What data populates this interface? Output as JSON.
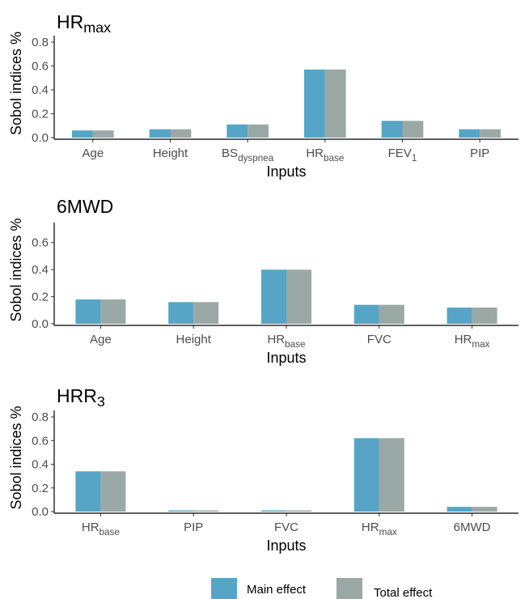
{
  "chart_data": [
    {
      "type": "bar",
      "title": "HR",
      "title_sub": "max",
      "xlabel": "Inputs",
      "ylabel": "Sobol indices %",
      "ylim": [
        0,
        0.8
      ],
      "yticks": [
        "0.0",
        "0.2",
        "0.4",
        "0.6",
        "0.8"
      ],
      "categories": [
        {
          "main": "Age",
          "sub": ""
        },
        {
          "main": "Height",
          "sub": ""
        },
        {
          "main": "BS",
          "sub": "dyspnea"
        },
        {
          "main": "HR",
          "sub": "base"
        },
        {
          "main": "FEV",
          "sub": "1"
        },
        {
          "main": "PIP",
          "sub": ""
        }
      ],
      "series": [
        {
          "name": "Main effect",
          "color": "#56a5c6",
          "values": [
            0.06,
            0.07,
            0.11,
            0.57,
            0.14,
            0.07
          ]
        },
        {
          "name": "Total effect",
          "color": "#9aa8a6",
          "values": [
            0.06,
            0.07,
            0.11,
            0.57,
            0.14,
            0.07
          ]
        }
      ],
      "grid": false
    },
    {
      "type": "bar",
      "title": "6MWD",
      "title_sub": "",
      "xlabel": "Inputs",
      "ylabel": "Sobol indices %",
      "ylim": [
        0,
        0.7
      ],
      "yticks": [
        "0.0",
        "0.2",
        "0.4",
        "0.6"
      ],
      "categories": [
        {
          "main": "Age",
          "sub": ""
        },
        {
          "main": "Height",
          "sub": ""
        },
        {
          "main": "HR",
          "sub": "base"
        },
        {
          "main": "FVC",
          "sub": ""
        },
        {
          "main": "HR",
          "sub": "max"
        }
      ],
      "series": [
        {
          "name": "Main effect",
          "color": "#56a5c6",
          "values": [
            0.18,
            0.16,
            0.4,
            0.14,
            0.12
          ]
        },
        {
          "name": "Total effect",
          "color": "#9aa8a6",
          "values": [
            0.18,
            0.16,
            0.4,
            0.14,
            0.12
          ]
        }
      ],
      "grid": false
    },
    {
      "type": "bar",
      "title": "HRR",
      "title_sub": "3",
      "xlabel": "Inputs",
      "ylabel": "Sobol indices %",
      "ylim": [
        0,
        0.8
      ],
      "yticks": [
        "0.0",
        "0.2",
        "0.4",
        "0.6",
        "0.8"
      ],
      "categories": [
        {
          "main": "HR",
          "sub": "base"
        },
        {
          "main": "PIP",
          "sub": ""
        },
        {
          "main": "FVC",
          "sub": ""
        },
        {
          "main": "HR",
          "sub": "max"
        },
        {
          "main": "6MWD",
          "sub": ""
        }
      ],
      "series": [
        {
          "name": "Main effect",
          "color": "#56a5c6",
          "values": [
            0.34,
            0.01,
            0.01,
            0.62,
            0.04
          ]
        },
        {
          "name": "Total effect",
          "color": "#9aa8a6",
          "values": [
            0.34,
            0.01,
            0.01,
            0.62,
            0.04
          ]
        }
      ],
      "grid": false
    }
  ],
  "legend": {
    "position": "bottom",
    "items": [
      {
        "label": "Main effect",
        "color": "#56a5c6"
      },
      {
        "label": "Total effect",
        "color": "#9aa8a6"
      }
    ]
  }
}
